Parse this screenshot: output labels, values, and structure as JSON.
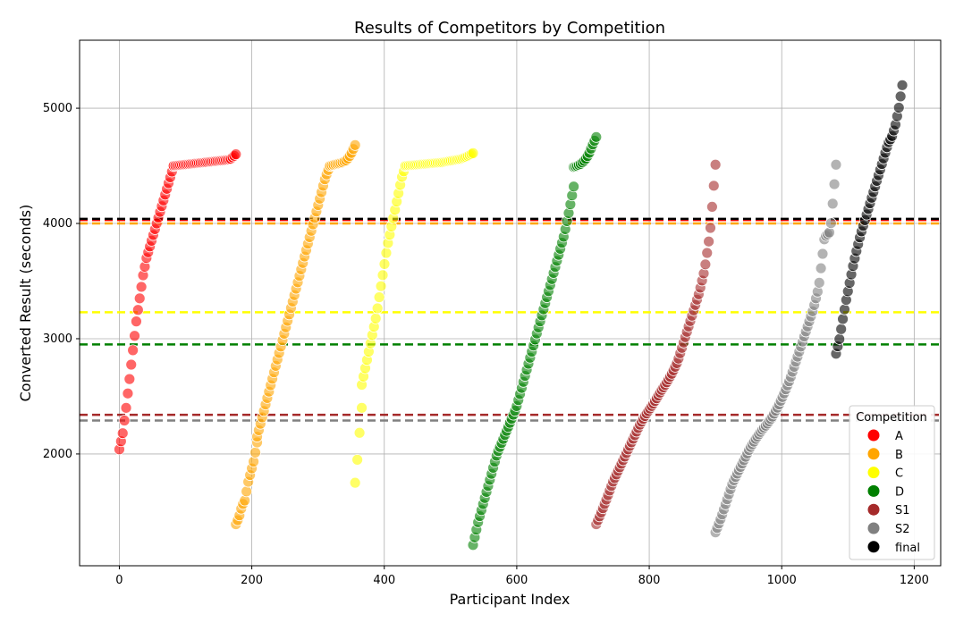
{
  "chart_data": {
    "type": "scatter",
    "title": "Results of Competitors by Competition",
    "xlabel": "Participant Index",
    "ylabel": "Converted Result (seconds)",
    "xlim": [
      -60,
      1240
    ],
    "ylim": [
      1030,
      5590
    ],
    "xticks": [
      0,
      200,
      400,
      600,
      800,
      1000,
      1200
    ],
    "yticks": [
      2000,
      3000,
      4000,
      5000
    ],
    "grid": true,
    "legend": {
      "title": "Competition",
      "position": "lower-right"
    },
    "series": [
      {
        "name": "A",
        "color": "#ff0000",
        "hline": 4030,
        "segments": [
          {
            "x0": 0,
            "x1": 82,
            "y": [
              2040,
              2180,
              2400,
              2650,
              2900,
              3150,
              3350,
              3550,
              3700,
              3800,
              3900,
              4000,
              4100,
              4200,
              4300,
              4400,
              4500
            ]
          },
          {
            "x0": 82,
            "x1": 176,
            "y": [
              4500,
              4505,
              4510,
              4515,
              4520,
              4525,
              4530,
              4535,
              4540,
              4545,
              4550,
              4560,
              4600
            ]
          }
        ]
      },
      {
        "name": "B",
        "color": "#ffa500",
        "hline": 4000,
        "segments": [
          {
            "x0": 176,
            "x1": 208,
            "y": [
              1390,
              1450,
              1550,
              1600,
              1750,
              1850,
              1950,
              2100
            ]
          },
          {
            "x0": 208,
            "x1": 318,
            "y": [
              2150,
              2300,
              2450,
              2600,
              2750,
              2900,
              3050,
              3200,
              3350,
              3500,
              3650,
              3800,
              3950,
              4100,
              4250,
              4400,
              4500
            ]
          },
          {
            "x0": 318,
            "x1": 356,
            "y": [
              4500,
              4510,
              4520,
              4530,
              4550,
              4600,
              4680
            ]
          }
        ]
      },
      {
        "name": "C",
        "color": "#ffff00",
        "hline": 3230,
        "segments": [
          {
            "x0": 356,
            "x1": 366,
            "y": [
              1750,
              1900,
              2050,
              2250,
              2400
            ]
          },
          {
            "x0": 366,
            "x1": 432,
            "y": [
              2600,
              2750,
              2900,
              3050,
              3200,
              3400,
              3600,
              3800,
              3950,
              4100,
              4250,
              4400,
              4500
            ]
          },
          {
            "x0": 432,
            "x1": 534,
            "y": [
              4500,
              4505,
              4510,
              4515,
              4520,
              4525,
              4530,
              4540,
              4550,
              4560,
              4580,
              4610
            ]
          }
        ]
      },
      {
        "name": "D",
        "color": "#008000",
        "hline": 2950,
        "segments": [
          {
            "x0": 534,
            "x1": 686,
            "y": [
              1210,
              1400,
              1550,
              1700,
              1850,
              2000,
              2100,
              2200,
              2300,
              2400,
              2550,
              2700,
              2850,
              3000,
              3150,
              3300,
              3450,
              3600,
              3750,
              3900,
              4100,
              4320
            ]
          },
          {
            "x0": 686,
            "x1": 720,
            "y": [
              4490,
              4500,
              4520,
              4550,
              4600,
              4680,
              4750
            ]
          }
        ]
      },
      {
        "name": "S1",
        "color": "#a52a2a",
        "hline": 2340,
        "segments": [
          {
            "x0": 720,
            "x1": 900,
            "y": [
              1390,
              1500,
              1620,
              1750,
              1850,
              1950,
              2050,
              2150,
              2250,
              2330,
              2400,
              2470,
              2550,
              2620,
              2700,
              2800,
              2950,
              3100,
              3250,
              3400,
              3600,
              3920,
              4510
            ]
          }
        ]
      },
      {
        "name": "S2",
        "color": "#808080",
        "hline": 2290,
        "segments": [
          {
            "x0": 900,
            "x1": 1082,
            "y": [
              1320,
              1450,
              1600,
              1750,
              1850,
              1950,
              2050,
              2130,
              2200,
              2260,
              2330,
              2420,
              2530,
              2650,
              2800,
              2950,
              3100,
              3250,
              3450,
              3880,
              3930,
              4510
            ]
          }
        ]
      },
      {
        "name": "final",
        "color": "#000000",
        "hline": 4040,
        "segments": [
          {
            "x0": 1082,
            "x1": 1182,
            "y": [
              2870,
              3000,
              3180,
              3350,
              3500,
              3650,
              3780,
              3900,
              4000,
              4100,
              4200,
              4300,
              4400,
              4500,
              4600,
              4700,
              4750,
              4850,
              5000,
              5200
            ]
          }
        ]
      }
    ]
  }
}
